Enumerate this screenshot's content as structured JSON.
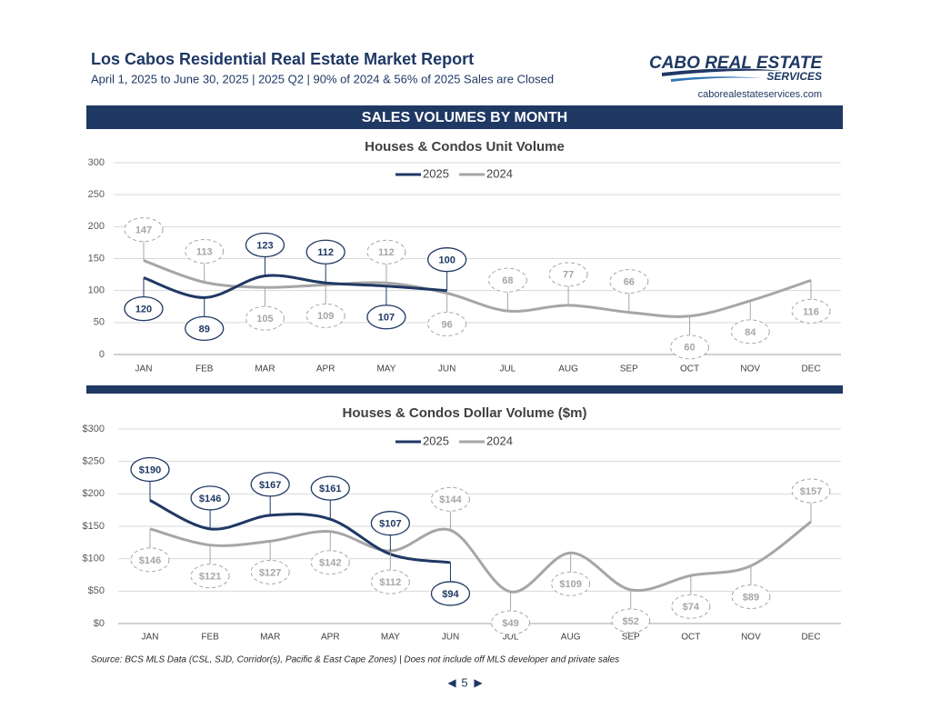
{
  "header": {
    "title": "Los Cabos Residential Real Estate Market Report",
    "subtitle": "April 1, 2025 to June 30, 2025 | 2025 Q2 | 90% of 2024 & 56% of 2025 Sales are Closed",
    "logo_line1": "CABO REAL ESTATE",
    "logo_line2": "SERVICES",
    "website": "caborealestateservices.com"
  },
  "section_title": "SALES VOLUMES BY MONTH",
  "chart_data": [
    {
      "type": "line",
      "title": "Houses & Condos Unit Volume",
      "categories": [
        "JAN",
        "FEB",
        "MAR",
        "APR",
        "MAY",
        "JUN",
        "JUL",
        "AUG",
        "SEP",
        "OCT",
        "NOV",
        "DEC"
      ],
      "series": [
        {
          "name": "2025",
          "color": "#1f3864",
          "values": [
            120,
            89,
            123,
            112,
            107,
            100,
            null,
            null,
            null,
            null,
            null,
            null
          ]
        },
        {
          "name": "2024",
          "color": "#a6a6a6",
          "values": [
            147,
            113,
            105,
            109,
            112,
            96,
            68,
            77,
            66,
            60,
            84,
            116
          ]
        }
      ],
      "ylim": [
        0,
        300
      ],
      "yticks": [
        0,
        50,
        100,
        150,
        200,
        250,
        300
      ],
      "grid": true,
      "legend": "top"
    },
    {
      "type": "line",
      "title": "Houses & Condos Dollar Volume ($m)",
      "categories": [
        "JAN",
        "FEB",
        "MAR",
        "APR",
        "MAY",
        "JUN",
        "JUL",
        "AUG",
        "SEP",
        "OCT",
        "NOV",
        "DEC"
      ],
      "series": [
        {
          "name": "2025",
          "color": "#1f3864",
          "values": [
            190,
            146,
            167,
            161,
            107,
            94,
            null,
            null,
            null,
            null,
            null,
            null
          ],
          "value_labels": [
            "$190",
            "$146",
            "$167",
            "$161",
            "$107",
            "$94",
            null,
            null,
            null,
            null,
            null,
            null
          ]
        },
        {
          "name": "2024",
          "color": "#a6a6a6",
          "values": [
            146,
            121,
            127,
            142,
            112,
            144,
            49,
            109,
            52,
            74,
            89,
            157
          ],
          "value_labels": [
            "$146",
            "$121",
            "$127",
            "$142",
            "$112",
            "$144",
            "$49",
            "$109",
            "$52",
            "$74",
            "$89",
            "$157"
          ]
        }
      ],
      "ylim": [
        0,
        300
      ],
      "yticks": [
        {
          "value": 0,
          "label": "$0"
        },
        {
          "value": 50,
          "label": "$50"
        },
        {
          "value": 100,
          "label": "$100"
        },
        {
          "value": 150,
          "label": "$150"
        },
        {
          "value": 200,
          "label": "$200"
        },
        {
          "value": 250,
          "label": "$250"
        },
        {
          "value": 300,
          "label": "$300"
        }
      ],
      "grid": true,
      "legend": "top"
    }
  ],
  "source": "Source:  BCS MLS Data (CSL, SJD, Corridor(s), Pacific & East Cape Zones) | Does not include off MLS developer and private sales",
  "page_number": "5"
}
